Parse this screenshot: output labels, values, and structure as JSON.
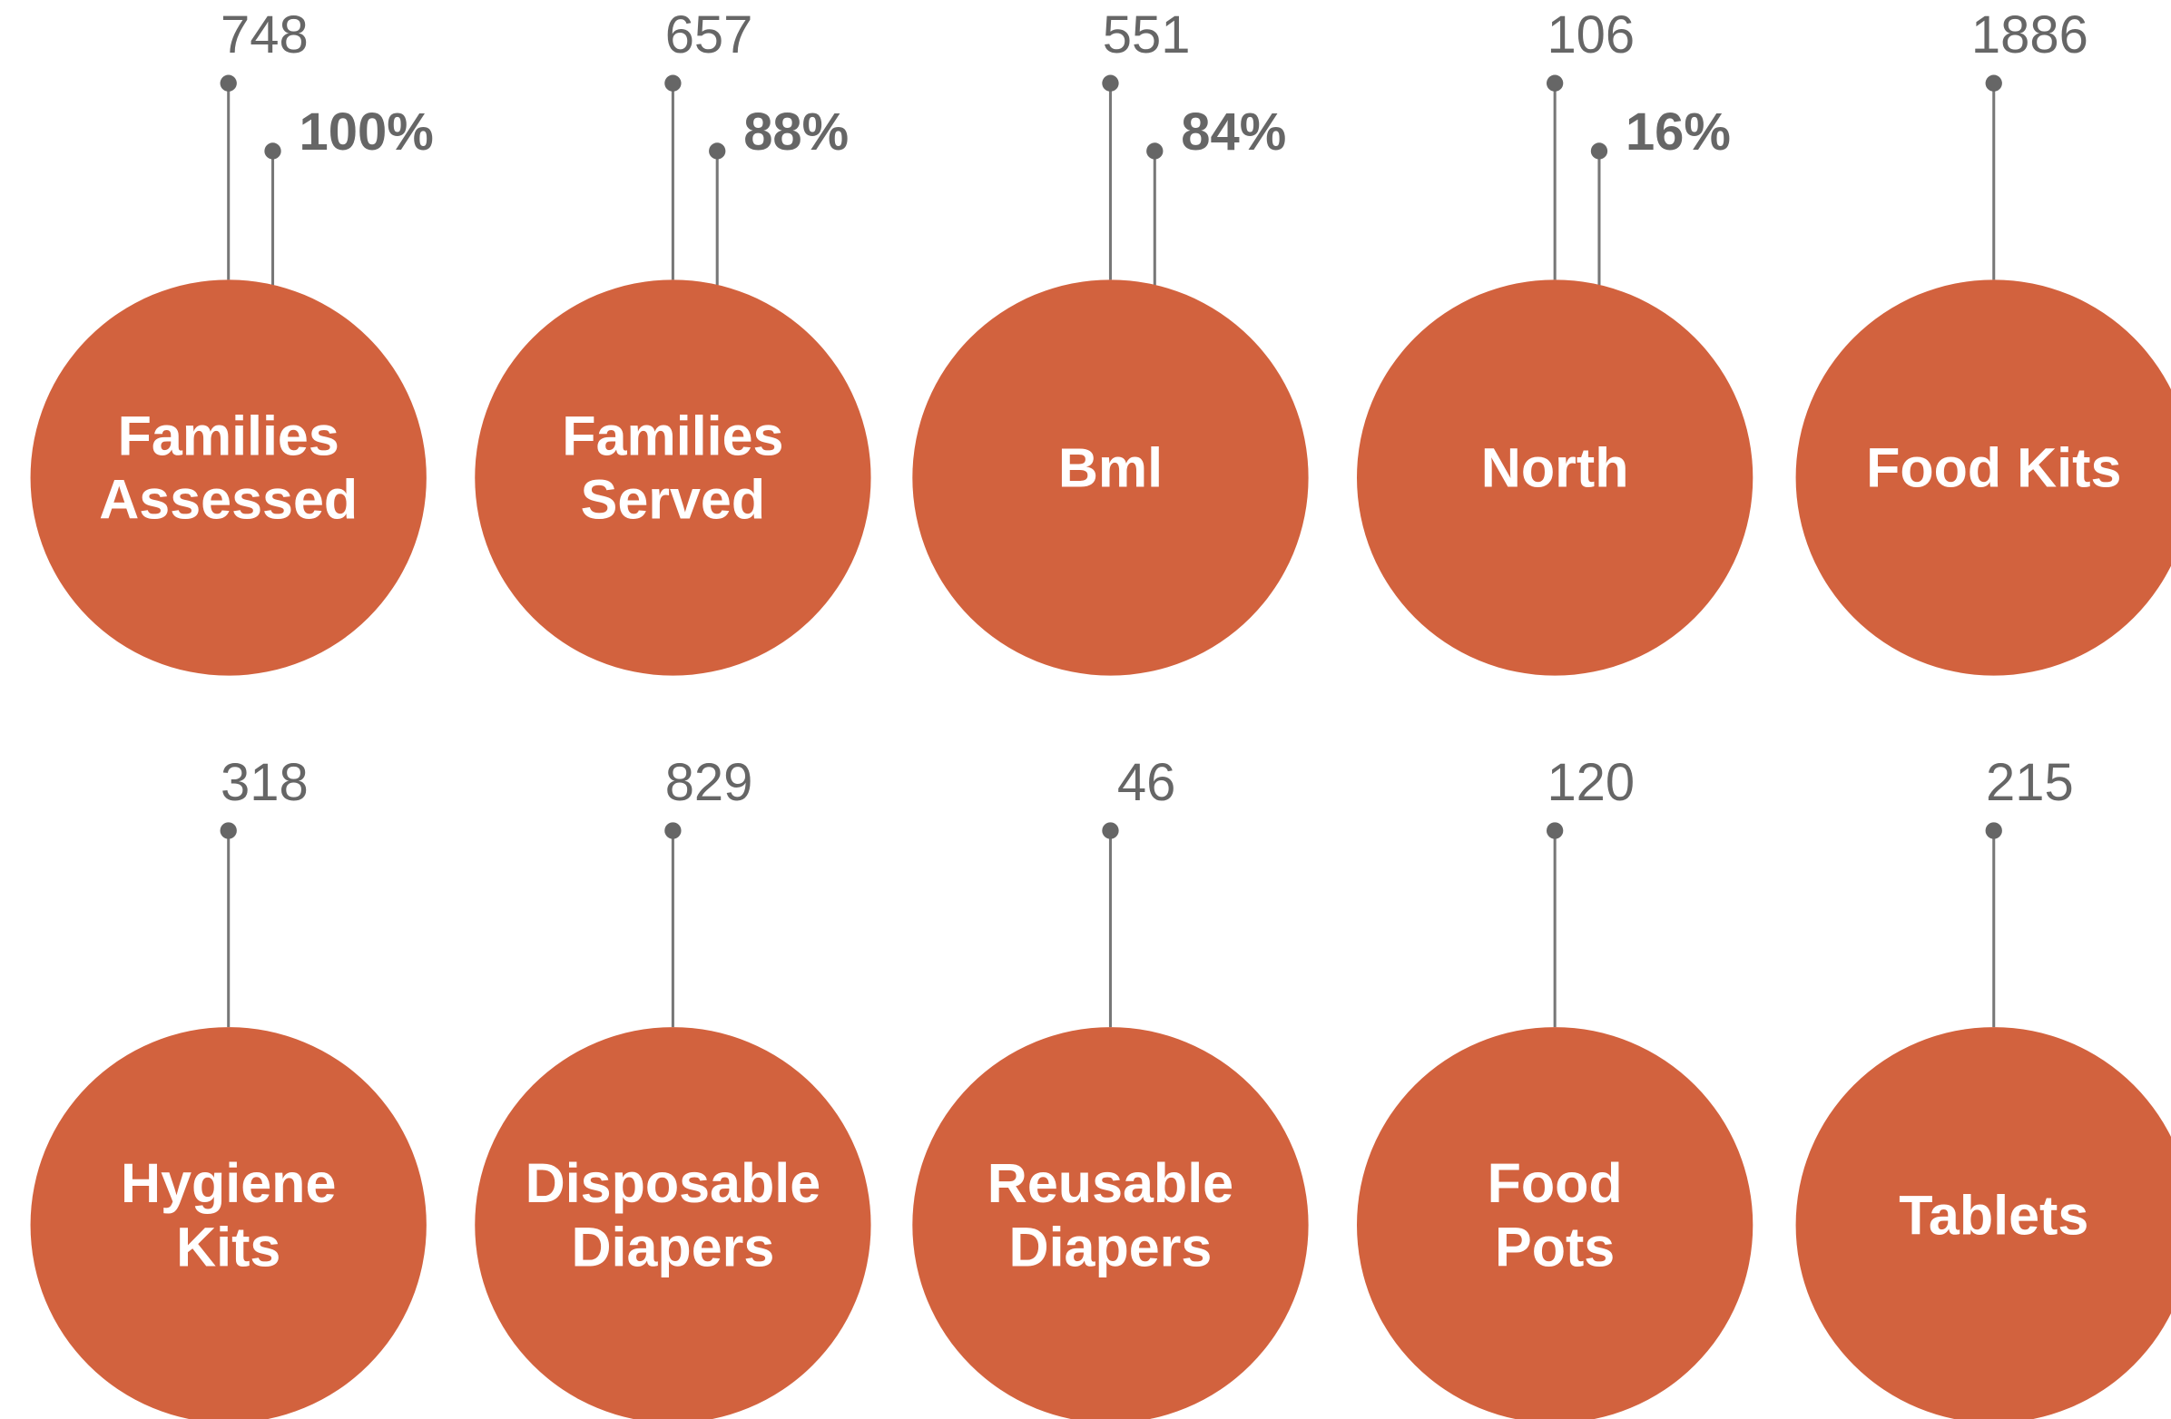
{
  "items": [
    {
      "label": [
        "Families",
        "Assessed"
      ],
      "value": "748",
      "percent": "100%"
    },
    {
      "label": [
        "Families",
        "Served"
      ],
      "value": "657",
      "percent": "88%"
    },
    {
      "label": [
        "Bml"
      ],
      "value": "551",
      "percent": "84%"
    },
    {
      "label": [
        "North"
      ],
      "value": "106",
      "percent": "16%"
    },
    {
      "label": [
        "Food Kits"
      ],
      "value": "1886"
    },
    {
      "label": [
        "Hygiene",
        "Kits"
      ],
      "value": "318"
    },
    {
      "label": [
        "Disposable",
        "Diapers"
      ],
      "value": "829"
    },
    {
      "label": [
        "Reusable",
        "Diapers"
      ],
      "value": "46"
    },
    {
      "label": [
        "Food",
        "Pots"
      ],
      "value": "120"
    },
    {
      "label": [
        "Tablets"
      ],
      "value": "215"
    }
  ]
}
